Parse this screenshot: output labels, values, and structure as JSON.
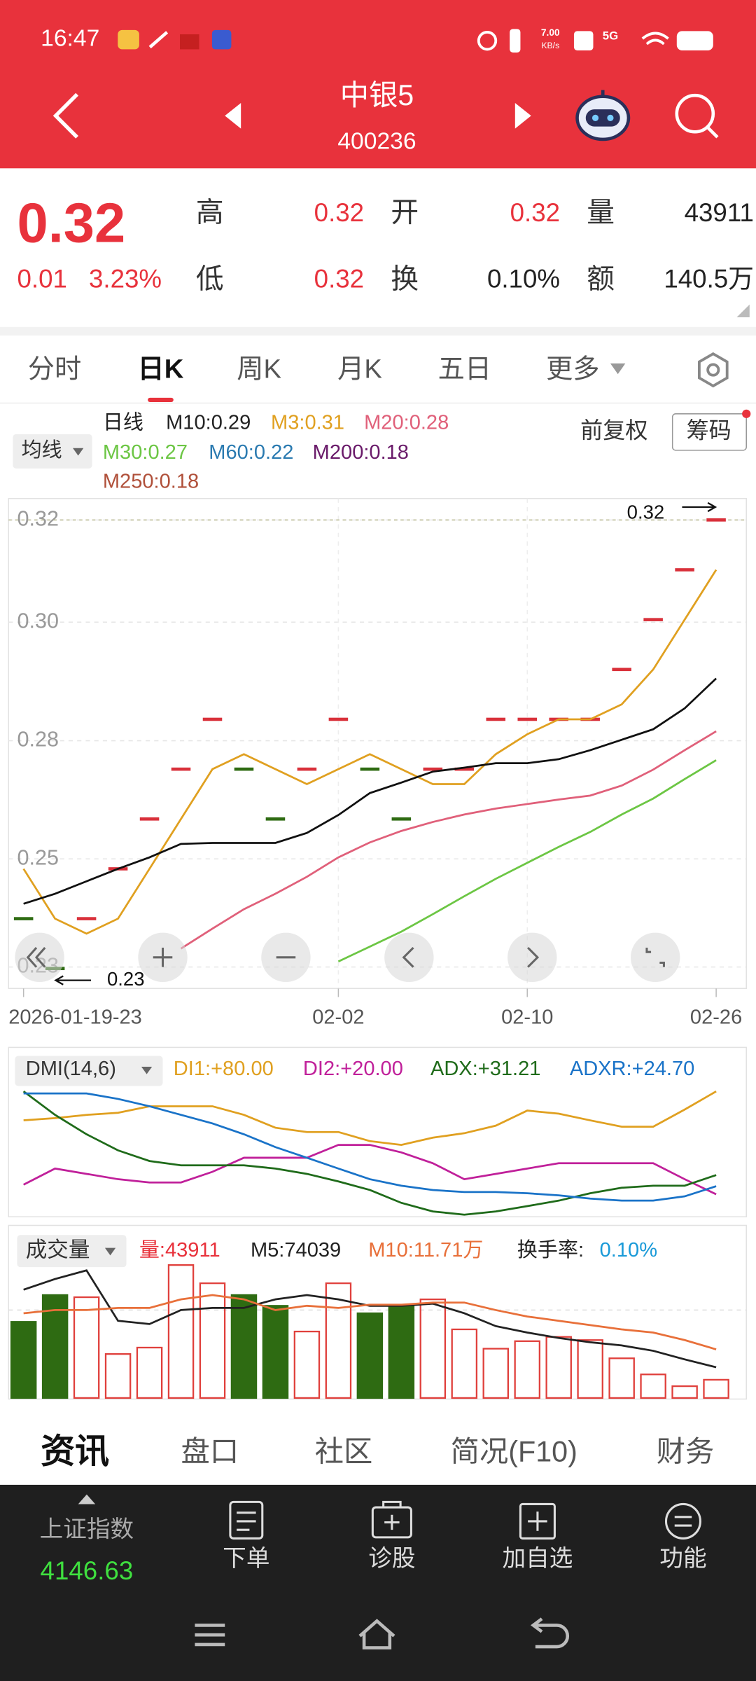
{
  "status_bar": {
    "time": "16:47",
    "speed": "7.00",
    "speed_unit": "KB/s",
    "network": "5G"
  },
  "header": {
    "name": "中银5",
    "code": "400236"
  },
  "quote": {
    "price": "0.32",
    "change": "0.01",
    "change_percent": "3.23%",
    "fields": [
      {
        "label": "高",
        "value": "0.32",
        "color": "#e8323c"
      },
      {
        "label": "低",
        "value": "0.32",
        "color": "#e8323c"
      },
      {
        "label": "开",
        "value": "0.32",
        "color": "#e8323c"
      },
      {
        "label": "换",
        "value": "0.10%",
        "color": "#222222"
      },
      {
        "label": "量",
        "value": "43911",
        "color": "#222222"
      },
      {
        "label": "额",
        "value": "140.5万",
        "color": "#222222"
      }
    ]
  },
  "tabs": {
    "items": [
      "分时",
      "日K",
      "周K",
      "月K",
      "五日",
      "更多"
    ],
    "active": 1
  },
  "kline": {
    "type": "candlestick",
    "selector": "均线",
    "legend": [
      {
        "text": "日线",
        "color": "#222222"
      },
      {
        "text": "M10:0.29",
        "color": "#222222"
      },
      {
        "text": "M3:0.31",
        "color": "#e0a020"
      },
      {
        "text": "M20:0.28",
        "color": "#e0607a"
      },
      {
        "text": "M30:0.27",
        "color": "#6cc644"
      },
      {
        "text": "M60:0.22",
        "color": "#2a7ab0"
      },
      {
        "text": "M200:0.18",
        "color": "#6a1b6a"
      },
      {
        "text": "M250:0.18",
        "color": "#b0503a"
      }
    ],
    "adjust": "前复权",
    "chips": "筹码",
    "values": [
      0.24,
      0.23,
      0.24,
      0.25,
      0.26,
      0.27,
      0.28,
      0.27,
      0.26,
      0.27,
      0.28,
      0.27,
      0.26,
      0.27,
      0.27,
      0.28,
      0.28,
      0.28,
      0.28,
      0.29,
      0.3,
      0.31,
      0.32
    ],
    "colors": [
      "#2e6b12",
      "#2e6b12",
      "#d9303a",
      "#d9303a",
      "#d9303a",
      "#d9303a",
      "#d9303a",
      "#2e6b12",
      "#2e6b12",
      "#d9303a",
      "#d9303a",
      "#2e6b12",
      "#2e6b12",
      "#d9303a",
      "#d9303a",
      "#d9303a",
      "#d9303a",
      "#d9303a",
      "#d9303a",
      "#d9303a",
      "#d9303a",
      "#d9303a",
      "#d9303a"
    ],
    "ylim": [
      0.226,
      0.3243
    ],
    "yticks": [
      {
        "value": 0.32,
        "label": "0.32"
      },
      {
        "value": 0.2995,
        "label": "0.30"
      },
      {
        "value": 0.2757,
        "label": "0.28"
      },
      {
        "value": 0.252,
        "label": "0.25"
      },
      {
        "value": 0.2303,
        "label": "0.23"
      }
    ],
    "grid": true,
    "x_labels": [
      {
        "index": 0,
        "label": "2026-01-19-23"
      },
      {
        "index": 10,
        "label": "02-02"
      },
      {
        "index": 16,
        "label": "02-10"
      },
      {
        "index": 22,
        "label": "02-26"
      }
    ],
    "high": {
      "index": 22,
      "value": 0.32,
      "label": "0.32"
    },
    "low": {
      "index": 1,
      "value": 0.23,
      "label": "0.23"
    },
    "series": [
      {
        "color": "#e0a020",
        "values": [
          0.25,
          0.24,
          0.237,
          0.24,
          0.25,
          0.26,
          0.27,
          0.273,
          0.27,
          0.267,
          0.27,
          0.273,
          0.27,
          0.267,
          0.267,
          0.273,
          0.277,
          0.28,
          0.28,
          0.283,
          0.29,
          0.3,
          0.31
        ]
      },
      {
        "color": "#111111",
        "values": [
          0.243,
          0.245,
          0.2475,
          0.25,
          0.2523,
          0.255,
          0.2552,
          0.2552,
          0.2552,
          0.2572,
          0.2608,
          0.2652,
          0.2673,
          0.2695,
          0.2703,
          0.2712,
          0.2712,
          0.272,
          0.2738,
          0.2759,
          0.278,
          0.2822,
          0.2882
        ]
      },
      {
        "color": "#e0607a",
        "values": [
          null,
          null,
          null,
          null,
          null,
          0.234,
          0.238,
          0.2419,
          0.245,
          0.2484,
          0.2523,
          0.2553,
          0.2576,
          0.2594,
          0.2609,
          0.2621,
          0.263,
          0.2639,
          0.2647,
          0.2667,
          0.2699,
          0.2738,
          0.2776
        ]
      },
      {
        "color": "#6cc644",
        "values": [
          null,
          null,
          null,
          null,
          null,
          null,
          null,
          null,
          null,
          null,
          0.2314,
          0.2344,
          0.2374,
          0.2409,
          0.2445,
          0.248,
          0.2512,
          0.2544,
          0.2574,
          0.2609,
          0.2641,
          0.268,
          0.2718
        ]
      }
    ]
  },
  "dmi": {
    "type": "line",
    "selector": "DMI(14,6)",
    "ylim": [
      7,
      85
    ],
    "series": [
      {
        "name": "DI1:+80.00",
        "color": "#e0a020",
        "values": [
          63.1,
          64.4,
          66.3,
          67.5,
          71.3,
          71.3,
          71.3,
          66.3,
          58.8,
          56.3,
          56.3,
          51,
          48.8,
          53,
          55.6,
          60,
          68.8,
          67,
          63.1,
          59.4,
          59.4,
          69.4,
          80
        ]
      },
      {
        "name": "DI2:+20.00",
        "color": "#c0209a",
        "values": [
          25.6,
          35,
          31.9,
          28.8,
          26.9,
          26.9,
          33.1,
          41.3,
          41.3,
          41.3,
          48.8,
          48.8,
          44.4,
          38.1,
          28.8,
          31.9,
          35,
          38.1,
          38.1,
          38.1,
          38.1,
          28.8,
          20
        ]
      },
      {
        "name": "ADX:+31.21",
        "color": "#1f6b1a",
        "values": [
          80,
          66.3,
          55,
          45.6,
          39.4,
          36.9,
          36.9,
          36.9,
          35,
          31.9,
          27.5,
          22.5,
          15,
          10,
          8.1,
          10,
          13.1,
          16.3,
          20.6,
          23.8,
          25,
          25,
          31.21
        ]
      },
      {
        "name": "ADXR:+24.70",
        "color": "#1a73c8",
        "values": [
          78.8,
          78.8,
          78.8,
          75.6,
          71.3,
          66.3,
          61.3,
          55,
          47.5,
          41.3,
          35,
          28.8,
          25,
          22.5,
          21.3,
          21.3,
          20.6,
          19.4,
          17.5,
          16.3,
          16.3,
          18.8,
          24.7
        ]
      }
    ]
  },
  "volume": {
    "type": "bar",
    "selector": "成交量",
    "ylim": [
      0,
      397800
    ],
    "legend": [
      {
        "text": "量:43911",
        "color": "#e8323c"
      },
      {
        "text": "M5:74039",
        "color": "#222222"
      },
      {
        "text": "M10:11.71万",
        "color": "#e8703a"
      },
      {
        "text": "换手率:",
        "color": "#222222"
      },
      {
        "text": "0.10%",
        "color": "#1a9ad8"
      }
    ],
    "values": [
      183400,
      248000,
      242800,
      105900,
      121400,
      320300,
      276400,
      248000,
      222100,
      160100,
      276400,
      204100,
      224700,
      237600,
      165300,
      118800,
      136900,
      147200,
      139500,
      95600,
      56800,
      28400,
      43911
    ],
    "series": [
      {
        "color": "#222222",
        "values": [
          260900,
          286700,
          307400,
          186000,
          178200,
          211800,
          217000,
          217000,
          237600,
          248000,
          237600,
          222100,
          222100,
          227300,
          204100,
          173100,
          157600,
          144600,
          134300,
          126600,
          113700,
          93000,
          74039
        ]
      },
      {
        "color": "#e8703a",
        "values": [
          204100,
          211800,
          211800,
          217000,
          217000,
          237600,
          248000,
          237600,
          211800,
          222100,
          217000,
          224700,
          224700,
          229900,
          229900,
          211800,
          196300,
          186000,
          175600,
          165300,
          157600,
          139500,
          117100
        ]
      }
    ]
  },
  "bottom_tabs": {
    "items": [
      "资讯",
      "盘口",
      "社区",
      "简况(F10)",
      "财务"
    ],
    "active": 0
  },
  "toolbar": {
    "index_name": "上证指数",
    "index_value": "4146.63",
    "buttons": [
      "下单",
      "诊股",
      "加自选",
      "功能"
    ]
  }
}
